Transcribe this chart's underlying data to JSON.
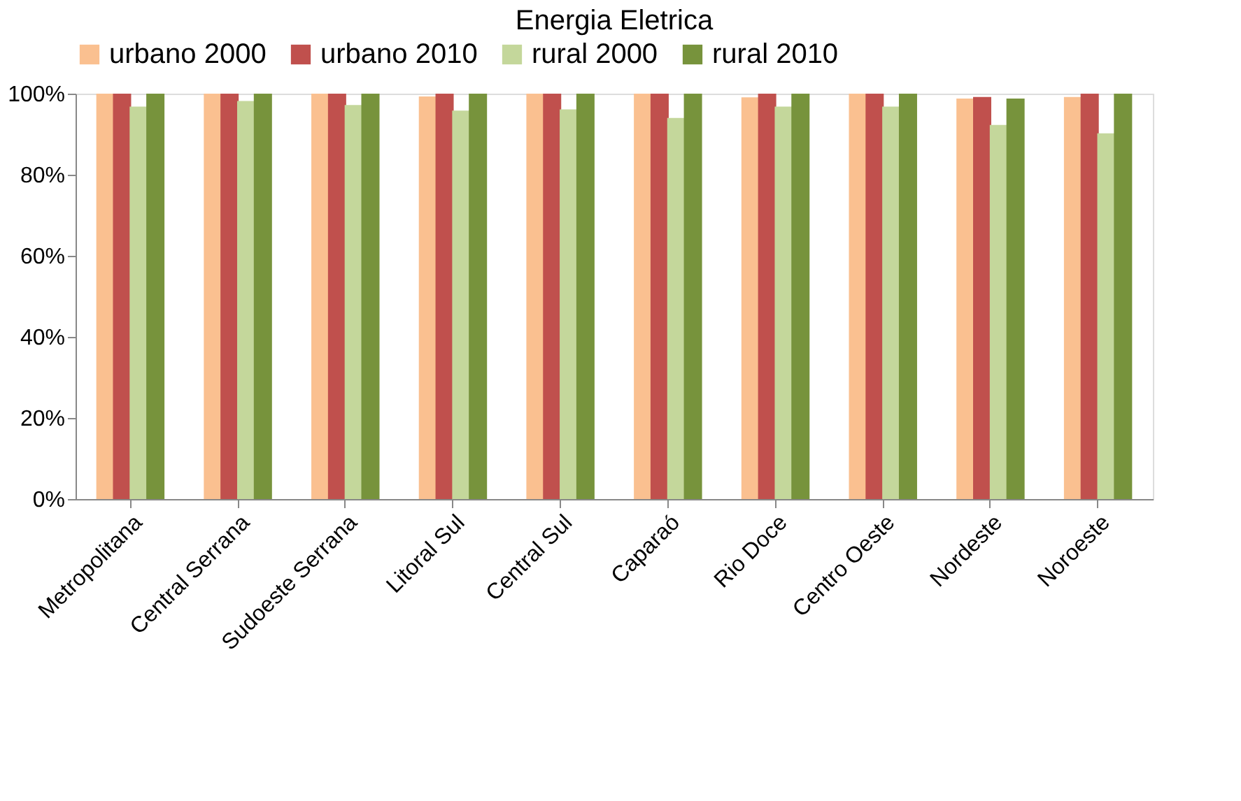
{
  "chart_data": {
    "type": "bar",
    "title": "Energia Eletrica",
    "categories": [
      "Metropolitana",
      "Central Serrana",
      "Sudoeste Serrana",
      "Litoral Sul",
      "Central Sul",
      "Caparaó",
      "Rio Doce",
      "Centro Oeste",
      "Nordeste",
      "Noroeste"
    ],
    "series": [
      {
        "name": "urbano 2000",
        "color": "#fac090",
        "values": [
          100,
          100,
          100,
          99.3,
          100,
          100,
          99.1,
          100,
          98.8,
          99.2
        ]
      },
      {
        "name": "urbano 2010",
        "color": "#c0504d",
        "values": [
          100,
          100,
          100,
          100,
          100,
          100,
          100,
          100,
          99.2,
          100
        ]
      },
      {
        "name": "rural 2000",
        "color": "#c4d79b",
        "values": [
          96.8,
          98.2,
          97.2,
          95.8,
          96.1,
          94,
          96.8,
          96.8,
          92.3,
          90.2
        ]
      },
      {
        "name": "rural 2010",
        "color": "#77933c",
        "values": [
          100,
          100,
          100,
          100,
          100,
          100,
          100,
          100,
          98.8,
          100
        ]
      }
    ],
    "ylim": [
      0,
      100
    ],
    "yticks": [
      {
        "value": 0,
        "label": "0%"
      },
      {
        "value": 20,
        "label": "20%"
      },
      {
        "value": 40,
        "label": "40%"
      },
      {
        "value": 60,
        "label": "60%"
      },
      {
        "value": 80,
        "label": "80%"
      },
      {
        "value": 100,
        "label": "100%"
      }
    ],
    "grid": false,
    "legend": "top"
  }
}
